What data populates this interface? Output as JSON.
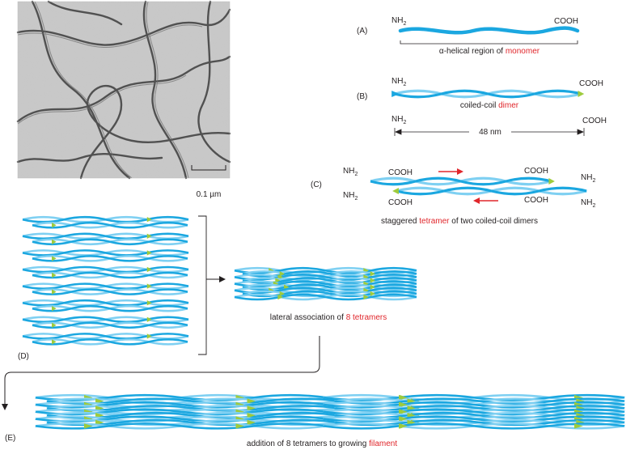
{
  "micrograph": {
    "scale_label": "0.1 µm"
  },
  "panels": {
    "a": {
      "tag": "(A)",
      "nh2": "NH",
      "sub": "2",
      "cooh": "COOH",
      "caption_pre": "α-helical region of ",
      "caption_key": "monomer"
    },
    "b": {
      "tag": "(B)",
      "nh2": "NH",
      "sub": "2",
      "cooh": "COOH",
      "caption_pre": "coiled-coil ",
      "caption_key": "dimer",
      "nh2_b": "NH",
      "cooh_b": "COOH",
      "length": "48 nm"
    },
    "c": {
      "tag": "(C)",
      "nh2": "NH",
      "sub": "2",
      "cooh": "COOH",
      "caption_pre": "staggered ",
      "caption_key": "tetramer",
      "caption_post": " of two coiled-coil dimers"
    },
    "d": {
      "tag": "(D)",
      "caption_pre": "lateral association of ",
      "caption_key": "8 tetramers"
    },
    "e": {
      "tag": "(E)",
      "caption_pre": "addition of 8 tetramers to growing ",
      "caption_key": "filament"
    }
  },
  "colors": {
    "helix_dark": "#1ba7e0",
    "helix_light": "#7fd0f2",
    "head": "#9ecb3c",
    "keyword": "#e0262b",
    "line": "#231f20"
  }
}
